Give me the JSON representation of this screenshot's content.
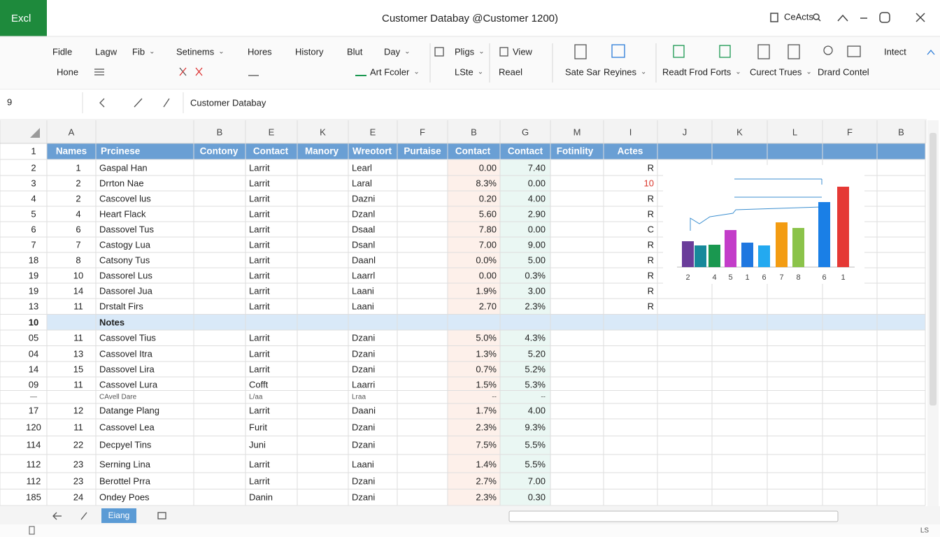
{
  "title_bar": {
    "app": "Excl",
    "title": "Customer Databay @Customer 1200)",
    "account": "CeActs"
  },
  "ribbon": {
    "row1": [
      "Fidle",
      "Lagw",
      "Fib",
      "Setinems",
      "Hores",
      "History",
      "Blut",
      "Day",
      "Pligs",
      "View",
      "Intect"
    ],
    "row2": [
      "Hone",
      "Art Fcoler",
      "LSte",
      "Reael",
      "Sate Sar",
      "Reyines",
      "Readt Frod Forts",
      "Curect Trues",
      "Drard Contel"
    ]
  },
  "formula_bar": {
    "cell": "9",
    "content": "Customer Databay"
  },
  "columns": [
    "A",
    null,
    "B",
    "E",
    "K",
    "E",
    "F",
    "B",
    "G",
    "M",
    "I",
    "J",
    "K",
    "L",
    "F",
    "B"
  ],
  "header_row": {
    "row": "1",
    "cells": [
      "Names",
      "Prcinese",
      "Contony",
      "Contact",
      "Manory",
      "Wreotort",
      "Purtaise",
      "Contact",
      "Contact",
      "Fotinlity",
      "Actes"
    ]
  },
  "rows": [
    [
      "2",
      "1",
      "Gaspal Han",
      "Larrit",
      "Learl",
      "0.00",
      "7.40",
      "R"
    ],
    [
      "3",
      "2",
      "Drrton Nae",
      "Larrit",
      "Laral",
      "8.3%",
      "0.00",
      "10"
    ],
    [
      "4",
      "2",
      "Cascovel lus",
      "Larrit",
      "Dazni",
      "0.20",
      "4.00",
      "R"
    ],
    [
      "5",
      "4",
      "Heart Flack",
      "Larrit",
      "Dzanl",
      "5.60",
      "2.90",
      "R"
    ],
    [
      "6",
      "6",
      "Dassovel Tus",
      "Larrit",
      "Dsaal",
      "7.80",
      "0.00",
      "C"
    ],
    [
      "7",
      "7",
      "Castogy Lua",
      "Larrit",
      "Dsanl",
      "7.00",
      "9.00",
      "R"
    ],
    [
      "18",
      "8",
      "Catsony Tus",
      "Larrit",
      "Daanl",
      "0.0%",
      "5.00",
      "R"
    ],
    [
      "19",
      "10",
      "Dassorel Lus",
      "Larrit",
      "Laarrl",
      "0.00",
      "0.3%",
      "R"
    ],
    [
      "19",
      "14",
      "Dassorel Jua",
      "Larrit",
      "Laani",
      "1.9%",
      "3.00",
      "R"
    ],
    [
      "13",
      "11",
      "Drstalt Firs",
      "Larrit",
      "Laani",
      "2.70",
      "2.3%",
      "R"
    ],
    [
      "10",
      null,
      "Notes",
      null,
      null,
      null,
      null,
      null
    ],
    [
      "05",
      "11",
      "Cassovel Tius",
      "Larrit",
      "Dzani",
      "5.0%",
      "4.3%",
      null
    ],
    [
      "04",
      "13",
      "Cassovel Itra",
      "Larrit",
      "Dzani",
      "1.3%",
      "5.20",
      null
    ],
    [
      "14",
      "15",
      "Dassovel Lira",
      "Larrit",
      "Dzani",
      "0.7%",
      "5.2%",
      null
    ],
    [
      "09",
      "11",
      "Cassovel Lura",
      "Cofft",
      "Laarri",
      "1.5%",
      "5.3%",
      null
    ],
    [
      "—",
      null,
      "CAvell Dare",
      "L/aa",
      "Lraa",
      "--",
      "--",
      null
    ],
    [
      "17",
      "12",
      "Datange Plang",
      "Larrit",
      "Daani",
      "1.7%",
      "4.00",
      null
    ],
    [
      "120",
      "11",
      "Cassovel Lea",
      "Furit",
      "Dzani",
      "2.3%",
      "9.3%",
      null
    ],
    [
      "114",
      "22",
      "Decpyel Tins",
      "Juni",
      "Dzani",
      "7.5%",
      "5.5%",
      null
    ],
    [
      "112",
      "23",
      "Serning Lina",
      "Larrit",
      "Laani",
      "1.4%",
      "5.5%",
      null
    ],
    [
      "112",
      "23",
      "Berottel Prra",
      "Larrit",
      "Dzani",
      "2.7%",
      "7.00",
      null
    ],
    [
      "185",
      "24",
      "Ondey Poes",
      "Danin",
      "Dzani",
      "2.3%",
      "0.30",
      null
    ]
  ],
  "chart": {
    "type": "bar",
    "categories": [
      "2",
      null,
      "4",
      "5",
      "1",
      "6",
      "7",
      "8",
      "6",
      "1"
    ],
    "values": [
      37,
      31,
      32,
      53,
      35,
      31,
      64,
      56,
      93,
      115
    ],
    "colors": [
      "#6a3d9a",
      "#17899b",
      "#1a9850",
      "#c33dc9",
      "#1f77e0",
      "#23a9f0",
      "#f39c12",
      "#8bc34a",
      "#1a7fe6",
      "#e53935"
    ]
  },
  "sheet_tab": "Eiang",
  "status": "LS"
}
